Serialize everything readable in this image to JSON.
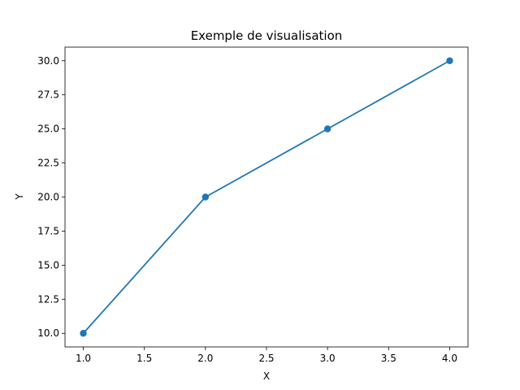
{
  "chart_data": {
    "type": "line",
    "title": "Exemple de visualisation",
    "xlabel": "X",
    "ylabel": "Y",
    "x": [
      1,
      2,
      3,
      4
    ],
    "series": [
      {
        "values": [
          10,
          20,
          25,
          30
        ],
        "color": "#1f77b4",
        "marker": "circle"
      }
    ],
    "xlim": [
      0.85,
      4.15
    ],
    "ylim": [
      9.0,
      31.0
    ],
    "xticks": [
      "1.0",
      "1.5",
      "2.0",
      "2.5",
      "3.0",
      "3.5",
      "4.0"
    ],
    "yticks": [
      "10.0",
      "12.5",
      "15.0",
      "17.5",
      "20.0",
      "22.5",
      "25.0",
      "27.5",
      "30.0"
    ],
    "grid": false,
    "legend": false
  }
}
